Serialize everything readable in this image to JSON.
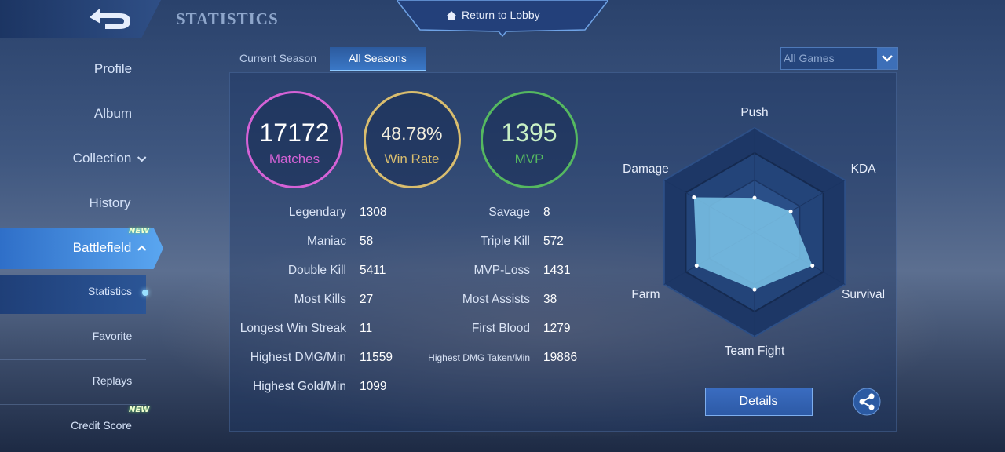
{
  "header": {
    "title": "STATISTICS",
    "lobby_button": "Return to Lobby"
  },
  "sidebar": {
    "items": [
      {
        "label": "Profile"
      },
      {
        "label": "Album"
      },
      {
        "label": "Collection"
      },
      {
        "label": "History"
      },
      {
        "label": "Battlefield",
        "badge": "NEW"
      },
      {
        "label": "Statistics"
      },
      {
        "label": "Favorite"
      },
      {
        "label": "Replays"
      },
      {
        "label": "Credit Score",
        "badge": "NEW"
      }
    ]
  },
  "tabs": [
    "Current Season",
    "All Seasons"
  ],
  "filter": "All Games",
  "summary": [
    {
      "value": 17172,
      "label": "Matches",
      "color": "#d562d6"
    },
    {
      "value": 48.78,
      "value_label": "48.78%",
      "label": "Win Rate",
      "color": "#d9bd6e"
    },
    {
      "value": 1395,
      "label": "MVP",
      "color": "#55b860"
    }
  ],
  "stats_left": [
    {
      "label": "Legendary",
      "value": 1308
    },
    {
      "label": "Maniac",
      "value": 58
    },
    {
      "label": "Double Kill",
      "value": 5411
    },
    {
      "label": "Most Kills",
      "value": 27
    },
    {
      "label": "Longest Win Streak",
      "value": 11
    },
    {
      "label": "Highest DMG/Min",
      "value": 11559
    },
    {
      "label": "Highest Gold/Min",
      "value": 1099
    }
  ],
  "stats_right": [
    {
      "label": "Savage",
      "value": 8
    },
    {
      "label": "Triple Kill",
      "value": 572
    },
    {
      "label": "MVP-Loss",
      "value": 1431
    },
    {
      "label": "Most Assists",
      "value": 38
    },
    {
      "label": "First Blood",
      "value": 1279
    },
    {
      "label": "Highest DMG Taken/Min",
      "value": 19886
    }
  ],
  "radar": {
    "axes": [
      "Push",
      "KDA",
      "Survival",
      "Team Fight",
      "Farm",
      "Damage"
    ],
    "values": [
      33,
      40,
      64,
      55,
      64,
      67
    ],
    "rlim": [
      0,
      100
    ],
    "color": "#7cc6ea"
  },
  "details_button": "Details"
}
